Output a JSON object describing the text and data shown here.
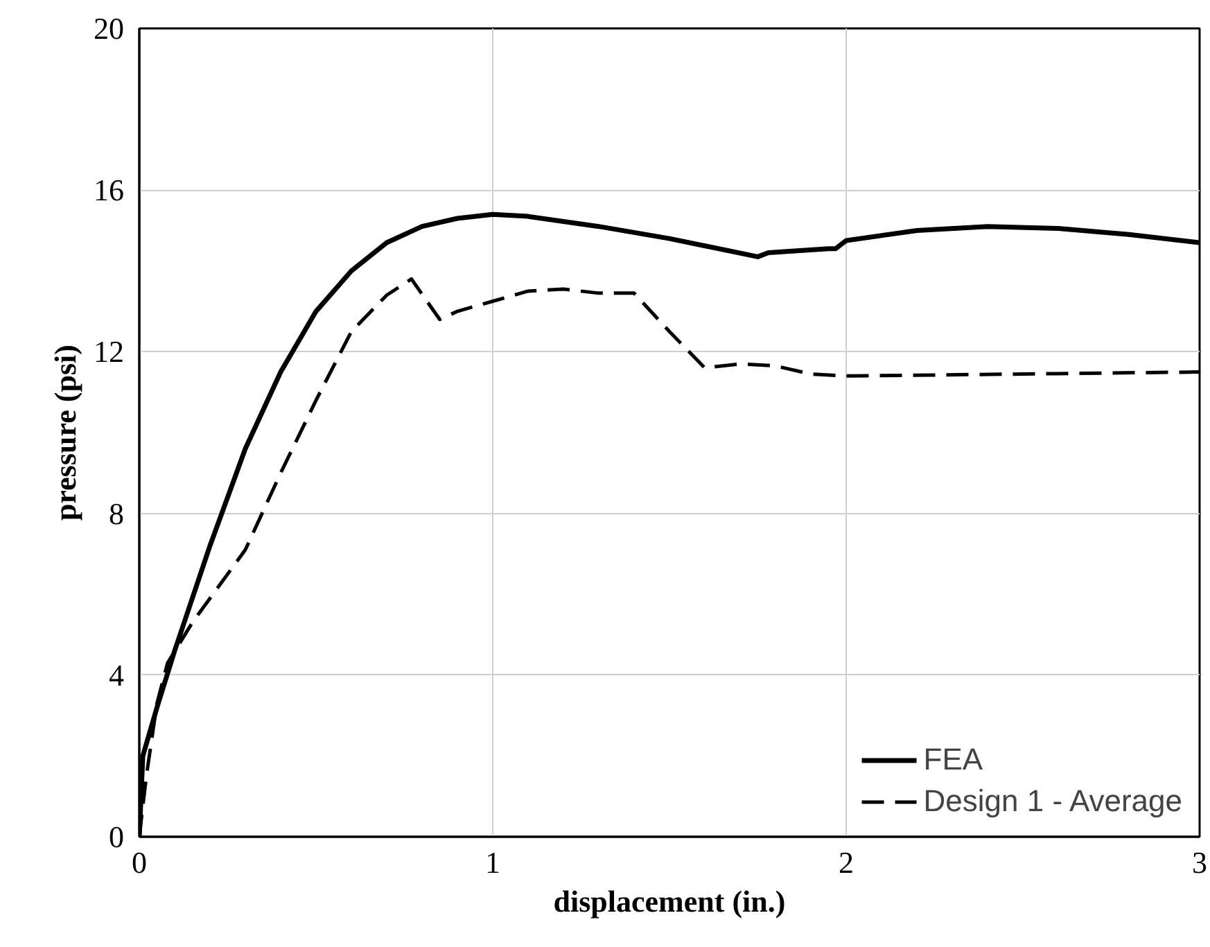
{
  "chart_data": {
    "type": "line",
    "xlabel": "displacement (in.)",
    "ylabel": "pressure (psi)",
    "xlim": [
      0,
      3
    ],
    "ylim": [
      0,
      20
    ],
    "xticks": [
      0,
      1,
      2,
      3
    ],
    "yticks": [
      0,
      4,
      8,
      12,
      16,
      20
    ],
    "grid": true,
    "legend": "bottom right",
    "series": [
      {
        "name": "FEA",
        "color": "#000000",
        "line_style": "solid",
        "x": [
          0,
          0.01,
          0.05,
          0.1,
          0.2,
          0.3,
          0.4,
          0.5,
          0.6,
          0.7,
          0.8,
          0.9,
          1.0,
          1.1,
          1.3,
          1.5,
          1.75,
          1.78,
          1.95,
          1.97,
          2.0,
          2.2,
          2.4,
          2.6,
          2.8,
          3.0
        ],
        "values": [
          0,
          2,
          3.2,
          4.6,
          7.2,
          9.6,
          11.5,
          13.0,
          14.0,
          14.7,
          15.1,
          15.3,
          15.4,
          15.35,
          15.1,
          14.8,
          14.35,
          14.45,
          14.55,
          14.55,
          14.75,
          15.0,
          15.1,
          15.05,
          14.9,
          14.7
        ]
      },
      {
        "name": "Design 1 - Average",
        "color": "#000000",
        "line_style": "dashed",
        "x": [
          0,
          0.02,
          0.05,
          0.08,
          0.15,
          0.25,
          0.3,
          0.4,
          0.5,
          0.6,
          0.7,
          0.77,
          0.85,
          0.9,
          1.0,
          1.1,
          1.2,
          1.3,
          1.4,
          1.5,
          1.6,
          1.7,
          1.8,
          1.9,
          2.0,
          2.5,
          3.0
        ],
        "values": [
          0,
          1.5,
          3.3,
          4.3,
          5.3,
          6.5,
          7.1,
          9.0,
          10.8,
          12.5,
          13.4,
          13.8,
          12.8,
          13.0,
          13.25,
          13.5,
          13.55,
          13.45,
          13.45,
          12.5,
          11.6,
          11.7,
          11.65,
          11.45,
          11.4,
          11.45,
          11.5
        ]
      }
    ]
  }
}
